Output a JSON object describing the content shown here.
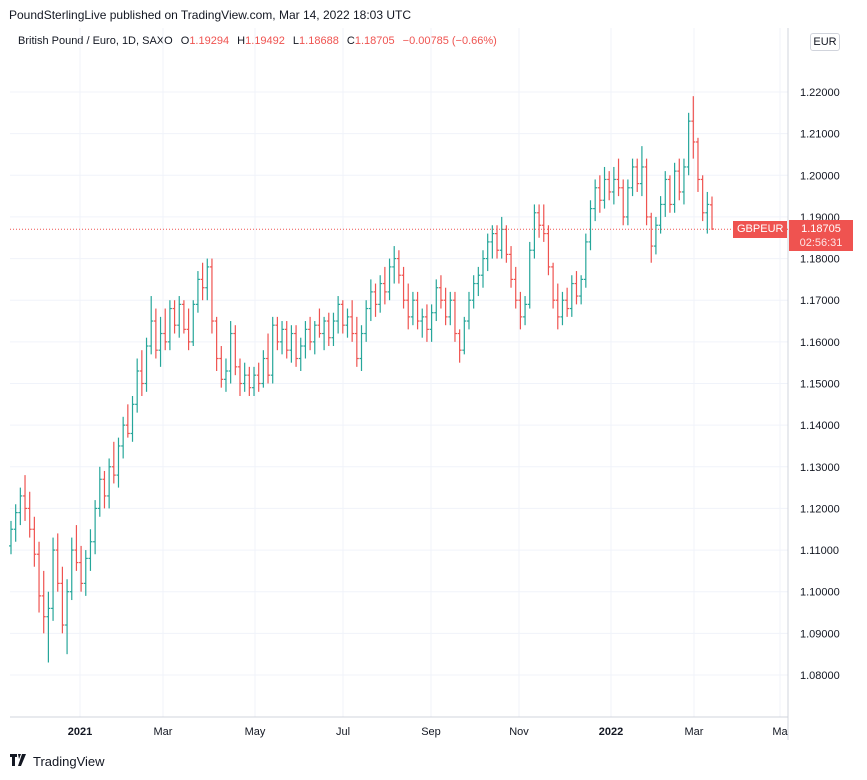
{
  "header": {
    "published": "PoundSterlingLive published on TradingView.com, Mar 14, 2022 18:03 UTC"
  },
  "legend": {
    "symbol_name": "British Pound / Euro, 1D, SAXO",
    "open_label": "O",
    "open": "1.19294",
    "high_label": "H",
    "high": "1.19492",
    "low_label": "L",
    "low": "1.18688",
    "close_label": "C",
    "close": "1.18705",
    "change": "−0.00785 (−0.66%)"
  },
  "currency": "EUR",
  "symbol_tag": "GBPEUR",
  "price_tag": {
    "price": "1.18705",
    "countdown": "02:56:31"
  },
  "footer": {
    "brand": "TradingView"
  },
  "colors": {
    "up": "#26a69a",
    "down": "#ef5350",
    "grid": "#f0f3fa",
    "axis": "#787b86"
  },
  "chart_data": {
    "type": "ohlc",
    "instrument": "GBPEUR",
    "timeframe": "1D",
    "ylim": [
      1.07,
      1.235
    ],
    "y_ticks": [
      "1.22000",
      "1.21000",
      "1.20000",
      "1.19000",
      "1.18000",
      "1.17000",
      "1.16000",
      "1.15000",
      "1.14000",
      "1.13000",
      "1.12000",
      "1.11000",
      "1.10000",
      "1.09000",
      "1.08000"
    ],
    "x_ticks": [
      "2021",
      "Mar",
      "May",
      "Jul",
      "Sep",
      "Nov",
      "2022",
      "Mar",
      "Ma"
    ],
    "bold_x_ticks": [
      "2021",
      "2022"
    ],
    "last_price": 1.18705,
    "bars": [
      {
        "o": 1.111,
        "h": 1.117,
        "l": 1.109,
        "c": 1.115
      },
      {
        "o": 1.115,
        "h": 1.121,
        "l": 1.112,
        "c": 1.119
      },
      {
        "o": 1.119,
        "h": 1.125,
        "l": 1.116,
        "c": 1.123
      },
      {
        "o": 1.123,
        "h": 1.128,
        "l": 1.117,
        "c": 1.12
      },
      {
        "o": 1.12,
        "h": 1.124,
        "l": 1.113,
        "c": 1.115
      },
      {
        "o": 1.115,
        "h": 1.118,
        "l": 1.106,
        "c": 1.109
      },
      {
        "o": 1.109,
        "h": 1.112,
        "l": 1.095,
        "c": 1.099
      },
      {
        "o": 1.099,
        "h": 1.105,
        "l": 1.09,
        "c": 1.094
      },
      {
        "o": 1.094,
        "h": 1.1,
        "l": 1.083,
        "c": 1.096
      },
      {
        "o": 1.096,
        "h": 1.113,
        "l": 1.093,
        "c": 1.11
      },
      {
        "o": 1.11,
        "h": 1.114,
        "l": 1.1,
        "c": 1.102
      },
      {
        "o": 1.102,
        "h": 1.106,
        "l": 1.09,
        "c": 1.092
      },
      {
        "o": 1.092,
        "h": 1.103,
        "l": 1.085,
        "c": 1.1
      },
      {
        "o": 1.1,
        "h": 1.113,
        "l": 1.098,
        "c": 1.11
      },
      {
        "o": 1.11,
        "h": 1.116,
        "l": 1.105,
        "c": 1.107
      },
      {
        "o": 1.107,
        "h": 1.111,
        "l": 1.1,
        "c": 1.102
      },
      {
        "o": 1.102,
        "h": 1.11,
        "l": 1.099,
        "c": 1.108
      },
      {
        "o": 1.108,
        "h": 1.115,
        "l": 1.105,
        "c": 1.112
      },
      {
        "o": 1.112,
        "h": 1.122,
        "l": 1.109,
        "c": 1.12
      },
      {
        "o": 1.12,
        "h": 1.13,
        "l": 1.118,
        "c": 1.127
      },
      {
        "o": 1.127,
        "h": 1.129,
        "l": 1.12,
        "c": 1.123
      },
      {
        "o": 1.123,
        "h": 1.132,
        "l": 1.12,
        "c": 1.13
      },
      {
        "o": 1.13,
        "h": 1.136,
        "l": 1.126,
        "c": 1.128
      },
      {
        "o": 1.128,
        "h": 1.137,
        "l": 1.125,
        "c": 1.135
      },
      {
        "o": 1.135,
        "h": 1.142,
        "l": 1.132,
        "c": 1.14
      },
      {
        "o": 1.14,
        "h": 1.145,
        "l": 1.137,
        "c": 1.138
      },
      {
        "o": 1.138,
        "h": 1.147,
        "l": 1.136,
        "c": 1.145
      },
      {
        "o": 1.145,
        "h": 1.156,
        "l": 1.143,
        "c": 1.153
      },
      {
        "o": 1.153,
        "h": 1.158,
        "l": 1.147,
        "c": 1.15
      },
      {
        "o": 1.15,
        "h": 1.161,
        "l": 1.148,
        "c": 1.159
      },
      {
        "o": 1.159,
        "h": 1.171,
        "l": 1.157,
        "c": 1.165
      },
      {
        "o": 1.165,
        "h": 1.168,
        "l": 1.156,
        "c": 1.158
      },
      {
        "o": 1.158,
        "h": 1.166,
        "l": 1.154,
        "c": 1.162
      },
      {
        "o": 1.162,
        "h": 1.168,
        "l": 1.158,
        "c": 1.16
      },
      {
        "o": 1.16,
        "h": 1.17,
        "l": 1.158,
        "c": 1.168
      },
      {
        "o": 1.168,
        "h": 1.17,
        "l": 1.162,
        "c": 1.164
      },
      {
        "o": 1.164,
        "h": 1.171,
        "l": 1.161,
        "c": 1.169
      },
      {
        "o": 1.169,
        "h": 1.17,
        "l": 1.162,
        "c": 1.163
      },
      {
        "o": 1.163,
        "h": 1.168,
        "l": 1.158,
        "c": 1.16
      },
      {
        "o": 1.16,
        "h": 1.17,
        "l": 1.159,
        "c": 1.169
      },
      {
        "o": 1.169,
        "h": 1.177,
        "l": 1.167,
        "c": 1.175
      },
      {
        "o": 1.175,
        "h": 1.179,
        "l": 1.17,
        "c": 1.173
      },
      {
        "o": 1.173,
        "h": 1.18,
        "l": 1.17,
        "c": 1.178
      },
      {
        "o": 1.178,
        "h": 1.18,
        "l": 1.162,
        "c": 1.165
      },
      {
        "o": 1.165,
        "h": 1.166,
        "l": 1.153,
        "c": 1.156
      },
      {
        "o": 1.156,
        "h": 1.159,
        "l": 1.149,
        "c": 1.151
      },
      {
        "o": 1.151,
        "h": 1.156,
        "l": 1.148,
        "c": 1.153
      },
      {
        "o": 1.153,
        "h": 1.165,
        "l": 1.15,
        "c": 1.162
      },
      {
        "o": 1.162,
        "h": 1.164,
        "l": 1.152,
        "c": 1.154
      },
      {
        "o": 1.154,
        "h": 1.156,
        "l": 1.147,
        "c": 1.15
      },
      {
        "o": 1.15,
        "h": 1.155,
        "l": 1.148,
        "c": 1.152
      },
      {
        "o": 1.152,
        "h": 1.154,
        "l": 1.147,
        "c": 1.149
      },
      {
        "o": 1.149,
        "h": 1.154,
        "l": 1.147,
        "c": 1.152
      },
      {
        "o": 1.152,
        "h": 1.155,
        "l": 1.148,
        "c": 1.15
      },
      {
        "o": 1.15,
        "h": 1.158,
        "l": 1.149,
        "c": 1.156
      },
      {
        "o": 1.156,
        "h": 1.162,
        "l": 1.15,
        "c": 1.152
      },
      {
        "o": 1.152,
        "h": 1.166,
        "l": 1.15,
        "c": 1.164
      },
      {
        "o": 1.164,
        "h": 1.166,
        "l": 1.158,
        "c": 1.16
      },
      {
        "o": 1.16,
        "h": 1.165,
        "l": 1.157,
        "c": 1.163
      },
      {
        "o": 1.163,
        "h": 1.165,
        "l": 1.156,
        "c": 1.158
      },
      {
        "o": 1.158,
        "h": 1.164,
        "l": 1.155,
        "c": 1.162
      },
      {
        "o": 1.162,
        "h": 1.164,
        "l": 1.154,
        "c": 1.156
      },
      {
        "o": 1.156,
        "h": 1.161,
        "l": 1.153,
        "c": 1.159
      },
      {
        "o": 1.159,
        "h": 1.165,
        "l": 1.156,
        "c": 1.163
      },
      {
        "o": 1.163,
        "h": 1.166,
        "l": 1.158,
        "c": 1.16
      },
      {
        "o": 1.16,
        "h": 1.165,
        "l": 1.157,
        "c": 1.164
      },
      {
        "o": 1.164,
        "h": 1.168,
        "l": 1.161,
        "c": 1.162
      },
      {
        "o": 1.162,
        "h": 1.166,
        "l": 1.158,
        "c": 1.165
      },
      {
        "o": 1.165,
        "h": 1.167,
        "l": 1.159,
        "c": 1.161
      },
      {
        "o": 1.161,
        "h": 1.167,
        "l": 1.159,
        "c": 1.165
      },
      {
        "o": 1.165,
        "h": 1.171,
        "l": 1.162,
        "c": 1.169
      },
      {
        "o": 1.169,
        "h": 1.17,
        "l": 1.162,
        "c": 1.164
      },
      {
        "o": 1.164,
        "h": 1.168,
        "l": 1.161,
        "c": 1.166
      },
      {
        "o": 1.166,
        "h": 1.17,
        "l": 1.16,
        "c": 1.162
      },
      {
        "o": 1.162,
        "h": 1.166,
        "l": 1.154,
        "c": 1.156
      },
      {
        "o": 1.156,
        "h": 1.164,
        "l": 1.153,
        "c": 1.162
      },
      {
        "o": 1.162,
        "h": 1.17,
        "l": 1.16,
        "c": 1.168
      },
      {
        "o": 1.168,
        "h": 1.175,
        "l": 1.165,
        "c": 1.172
      },
      {
        "o": 1.172,
        "h": 1.174,
        "l": 1.166,
        "c": 1.169
      },
      {
        "o": 1.169,
        "h": 1.176,
        "l": 1.167,
        "c": 1.174
      },
      {
        "o": 1.174,
        "h": 1.178,
        "l": 1.169,
        "c": 1.172
      },
      {
        "o": 1.172,
        "h": 1.18,
        "l": 1.17,
        "c": 1.178
      },
      {
        "o": 1.178,
        "h": 1.183,
        "l": 1.174,
        "c": 1.18
      },
      {
        "o": 1.18,
        "h": 1.182,
        "l": 1.174,
        "c": 1.176
      },
      {
        "o": 1.176,
        "h": 1.178,
        "l": 1.168,
        "c": 1.17
      },
      {
        "o": 1.17,
        "h": 1.174,
        "l": 1.163,
        "c": 1.166
      },
      {
        "o": 1.166,
        "h": 1.172,
        "l": 1.164,
        "c": 1.17
      },
      {
        "o": 1.17,
        "h": 1.172,
        "l": 1.163,
        "c": 1.165
      },
      {
        "o": 1.165,
        "h": 1.168,
        "l": 1.161,
        "c": 1.166
      },
      {
        "o": 1.166,
        "h": 1.169,
        "l": 1.16,
        "c": 1.163
      },
      {
        "o": 1.163,
        "h": 1.169,
        "l": 1.16,
        "c": 1.167
      },
      {
        "o": 1.167,
        "h": 1.175,
        "l": 1.165,
        "c": 1.173
      },
      {
        "o": 1.173,
        "h": 1.176,
        "l": 1.168,
        "c": 1.17
      },
      {
        "o": 1.17,
        "h": 1.173,
        "l": 1.164,
        "c": 1.166
      },
      {
        "o": 1.166,
        "h": 1.172,
        "l": 1.164,
        "c": 1.17
      },
      {
        "o": 1.17,
        "h": 1.172,
        "l": 1.16,
        "c": 1.162
      },
      {
        "o": 1.162,
        "h": 1.163,
        "l": 1.155,
        "c": 1.158
      },
      {
        "o": 1.158,
        "h": 1.166,
        "l": 1.157,
        "c": 1.165
      },
      {
        "o": 1.165,
        "h": 1.172,
        "l": 1.163,
        "c": 1.17
      },
      {
        "o": 1.17,
        "h": 1.176,
        "l": 1.168,
        "c": 1.174
      },
      {
        "o": 1.174,
        "h": 1.178,
        "l": 1.171,
        "c": 1.176
      },
      {
        "o": 1.176,
        "h": 1.182,
        "l": 1.173,
        "c": 1.18
      },
      {
        "o": 1.18,
        "h": 1.186,
        "l": 1.177,
        "c": 1.184
      },
      {
        "o": 1.184,
        "h": 1.188,
        "l": 1.18,
        "c": 1.186
      },
      {
        "o": 1.186,
        "h": 1.188,
        "l": 1.18,
        "c": 1.182
      },
      {
        "o": 1.182,
        "h": 1.19,
        "l": 1.18,
        "c": 1.187
      },
      {
        "o": 1.187,
        "h": 1.188,
        "l": 1.179,
        "c": 1.181
      },
      {
        "o": 1.181,
        "h": 1.183,
        "l": 1.173,
        "c": 1.175
      },
      {
        "o": 1.175,
        "h": 1.178,
        "l": 1.168,
        "c": 1.17
      },
      {
        "o": 1.17,
        "h": 1.172,
        "l": 1.163,
        "c": 1.166
      },
      {
        "o": 1.166,
        "h": 1.171,
        "l": 1.164,
        "c": 1.169
      },
      {
        "o": 1.169,
        "h": 1.184,
        "l": 1.168,
        "c": 1.182
      },
      {
        "o": 1.182,
        "h": 1.193,
        "l": 1.18,
        "c": 1.191
      },
      {
        "o": 1.191,
        "h": 1.193,
        "l": 1.185,
        "c": 1.188
      },
      {
        "o": 1.188,
        "h": 1.193,
        "l": 1.184,
        "c": 1.186
      },
      {
        "o": 1.186,
        "h": 1.188,
        "l": 1.176,
        "c": 1.178
      },
      {
        "o": 1.178,
        "h": 1.179,
        "l": 1.168,
        "c": 1.17
      },
      {
        "o": 1.17,
        "h": 1.174,
        "l": 1.163,
        "c": 1.166
      },
      {
        "o": 1.166,
        "h": 1.172,
        "l": 1.164,
        "c": 1.17
      },
      {
        "o": 1.17,
        "h": 1.173,
        "l": 1.166,
        "c": 1.168
      },
      {
        "o": 1.168,
        "h": 1.176,
        "l": 1.166,
        "c": 1.174
      },
      {
        "o": 1.174,
        "h": 1.177,
        "l": 1.169,
        "c": 1.171
      },
      {
        "o": 1.171,
        "h": 1.176,
        "l": 1.169,
        "c": 1.175
      },
      {
        "o": 1.175,
        "h": 1.186,
        "l": 1.173,
        "c": 1.184
      },
      {
        "o": 1.184,
        "h": 1.194,
        "l": 1.182,
        "c": 1.192
      },
      {
        "o": 1.192,
        "h": 1.199,
        "l": 1.189,
        "c": 1.197
      },
      {
        "o": 1.197,
        "h": 1.2,
        "l": 1.191,
        "c": 1.194
      },
      {
        "o": 1.194,
        "h": 1.202,
        "l": 1.192,
        "c": 1.199
      },
      {
        "o": 1.199,
        "h": 1.201,
        "l": 1.194,
        "c": 1.196
      },
      {
        "o": 1.196,
        "h": 1.202,
        "l": 1.193,
        "c": 1.199
      },
      {
        "o": 1.199,
        "h": 1.204,
        "l": 1.195,
        "c": 1.197
      },
      {
        "o": 1.197,
        "h": 1.199,
        "l": 1.188,
        "c": 1.19
      },
      {
        "o": 1.19,
        "h": 1.199,
        "l": 1.188,
        "c": 1.197
      },
      {
        "o": 1.197,
        "h": 1.204,
        "l": 1.195,
        "c": 1.202
      },
      {
        "o": 1.202,
        "h": 1.204,
        "l": 1.196,
        "c": 1.198
      },
      {
        "o": 1.198,
        "h": 1.207,
        "l": 1.195,
        "c": 1.202
      },
      {
        "o": 1.202,
        "h": 1.204,
        "l": 1.188,
        "c": 1.19
      },
      {
        "o": 1.19,
        "h": 1.191,
        "l": 1.179,
        "c": 1.183
      },
      {
        "o": 1.183,
        "h": 1.19,
        "l": 1.181,
        "c": 1.188
      },
      {
        "o": 1.188,
        "h": 1.195,
        "l": 1.186,
        "c": 1.193
      },
      {
        "o": 1.193,
        "h": 1.201,
        "l": 1.19,
        "c": 1.199
      },
      {
        "o": 1.199,
        "h": 1.2,
        "l": 1.191,
        "c": 1.193
      },
      {
        "o": 1.193,
        "h": 1.203,
        "l": 1.191,
        "c": 1.201
      },
      {
        "o": 1.201,
        "h": 1.204,
        "l": 1.194,
        "c": 1.196
      },
      {
        "o": 1.196,
        "h": 1.204,
        "l": 1.193,
        "c": 1.202
      },
      {
        "o": 1.202,
        "h": 1.215,
        "l": 1.2,
        "c": 1.213
      },
      {
        "o": 1.213,
        "h": 1.219,
        "l": 1.204,
        "c": 1.208
      },
      {
        "o": 1.208,
        "h": 1.209,
        "l": 1.196,
        "c": 1.199
      },
      {
        "o": 1.199,
        "h": 1.2,
        "l": 1.189,
        "c": 1.191
      },
      {
        "o": 1.191,
        "h": 1.196,
        "l": 1.186,
        "c": 1.193
      },
      {
        "o": 1.1929,
        "h": 1.1949,
        "l": 1.1869,
        "c": 1.1871
      }
    ]
  }
}
